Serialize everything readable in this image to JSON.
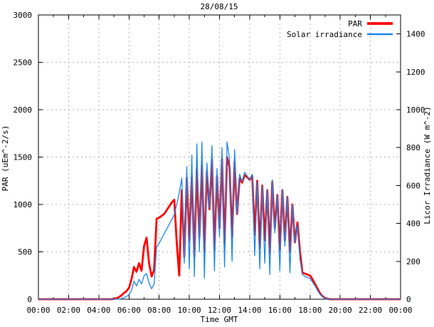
{
  "chart_data": {
    "type": "line",
    "title": "28/08/15",
    "grid": true,
    "legend_position": "top-right",
    "x_axis": {
      "label": "Time GMT",
      "unit": "minutes",
      "start": 0,
      "end": 1440,
      "major_tick_step": 120,
      "minor_tick_step": 60,
      "tick_labels": [
        "00:00",
        "02:00",
        "04:00",
        "06:00",
        "08:00",
        "10:00",
        "12:00",
        "14:00",
        "16:00",
        "18:00",
        "20:00",
        "22:00",
        "00:00"
      ]
    },
    "y_left_axis": {
      "label": "PAR (uEm^-2/s)",
      "min": 0,
      "max": 3000,
      "ticks": [
        0,
        500,
        1000,
        1500,
        2000,
        2500,
        3000
      ]
    },
    "y_right_axis": {
      "label": "Licor Irradiance (W m^-2)",
      "min": 0,
      "max": 1500,
      "ticks": [
        0,
        200,
        400,
        600,
        800,
        1000,
        1200,
        1400
      ]
    },
    "sample_step_minutes": 10,
    "series": [
      {
        "name": "PAR",
        "axis": "left",
        "color": "#ff0000",
        "line_width": 2.8,
        "values": [
          0,
          0,
          0,
          0,
          0,
          0,
          0,
          0,
          0,
          0,
          0,
          0,
          0,
          0,
          0,
          0,
          0,
          0,
          0,
          0,
          0,
          0,
          0,
          0,
          0,
          0,
          0,
          0,
          0,
          0,
          4,
          10,
          22,
          40,
          65,
          85,
          120,
          210,
          340,
          290,
          380,
          300,
          560,
          650,
          380,
          240,
          310,
          850,
          860,
          880,
          900,
          940,
          980,
          1020,
          1050,
          600,
          250,
          1150,
          450,
          1280,
          620,
          1300,
          450,
          1380,
          650,
          1420,
          500,
          1350,
          950,
          1480,
          520,
          1300,
          750,
          1480,
          580,
          1500,
          1400,
          650,
          1450,
          900,
          1280,
          1230,
          1310,
          1290,
          1260,
          1300,
          680,
          1250,
          530,
          1200,
          620,
          1150,
          480,
          1240,
          750,
          1100,
          520,
          1150,
          620,
          1080,
          500,
          1000,
          600,
          810,
          500,
          280,
          270,
          260,
          250,
          210,
          160,
          110,
          60,
          30,
          12,
          4,
          0,
          0,
          0,
          0,
          0,
          0,
          0,
          0,
          0,
          0,
          0,
          0,
          0,
          0,
          0,
          0,
          0,
          0,
          0,
          0,
          0,
          0,
          0,
          0,
          0,
          0,
          0,
          0,
          0
        ]
      },
      {
        "name": "Solar irradiance",
        "axis": "right",
        "color": "#1c86ee",
        "line_width": 1.3,
        "values": [
          0,
          0,
          0,
          0,
          0,
          0,
          0,
          0,
          0,
          0,
          0,
          0,
          0,
          0,
          0,
          0,
          0,
          0,
          0,
          0,
          0,
          0,
          0,
          0,
          0,
          0,
          0,
          0,
          0,
          0,
          0,
          0,
          0,
          3,
          8,
          14,
          25,
          45,
          95,
          70,
          105,
          80,
          125,
          135,
          85,
          55,
          80,
          275,
          295,
          320,
          345,
          370,
          395,
          420,
          445,
          500,
          560,
          640,
          190,
          700,
          160,
          760,
          120,
          820,
          250,
          830,
          110,
          720,
          480,
          810,
          150,
          690,
          330,
          800,
          170,
          830,
          740,
          200,
          790,
          450,
          660,
          620,
          670,
          650,
          630,
          660,
          230,
          620,
          160,
          600,
          190,
          580,
          130,
          630,
          350,
          550,
          150,
          580,
          280,
          540,
          140,
          500,
          300,
          390,
          210,
          130,
          120,
          115,
          110,
          90,
          70,
          45,
          25,
          12,
          4,
          0,
          0,
          0,
          0,
          0,
          0,
          0,
          0,
          0,
          0,
          0,
          0,
          0,
          0,
          0,
          0,
          0,
          0,
          0,
          0,
          0,
          0,
          0,
          0,
          0,
          0,
          0,
          0,
          0,
          0
        ]
      }
    ]
  }
}
